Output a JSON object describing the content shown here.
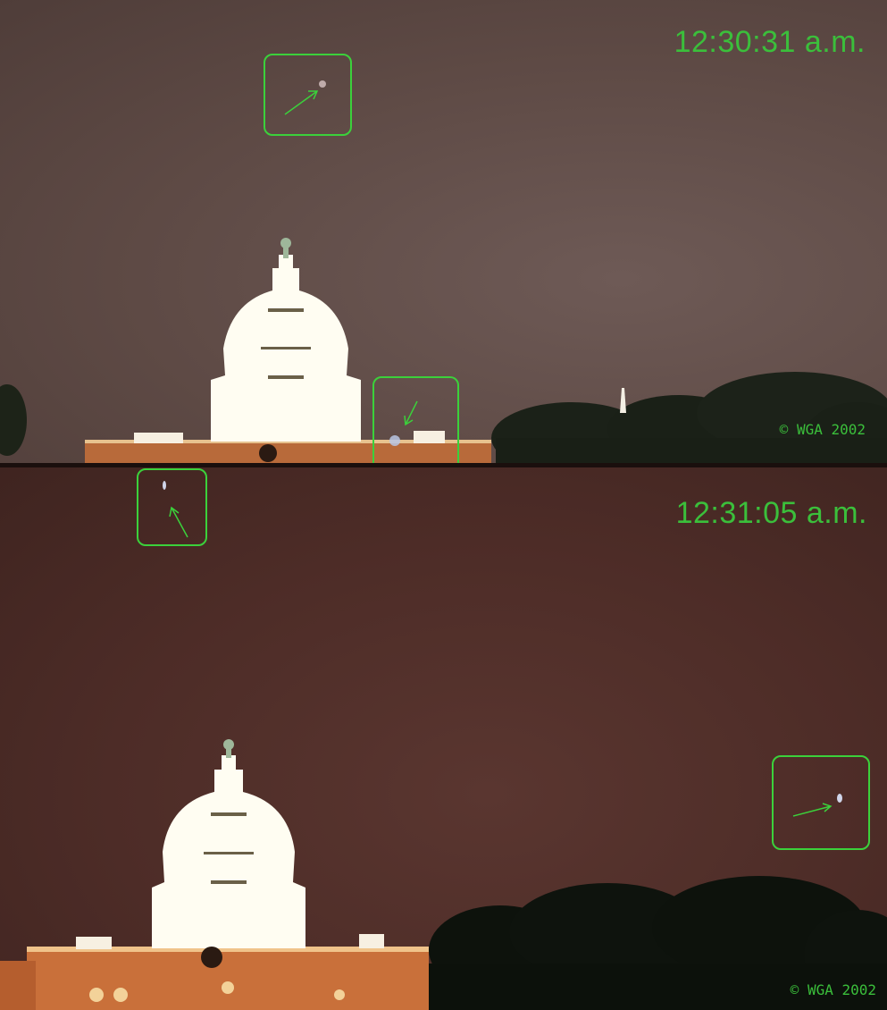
{
  "top_photo": {
    "timestamp": "12:30:31 a.m.",
    "copyright": "© WGA 2002"
  },
  "bottom_photo": {
    "timestamp": "12:31:05 a.m.",
    "copyright": "© WGA 2002"
  },
  "colors": {
    "annotation": "#3bd13b",
    "top_sky": "#5e4a45",
    "bottom_sky": "#4d2c27",
    "dome": "#fffdf2",
    "building_light": "#e8a24a"
  }
}
